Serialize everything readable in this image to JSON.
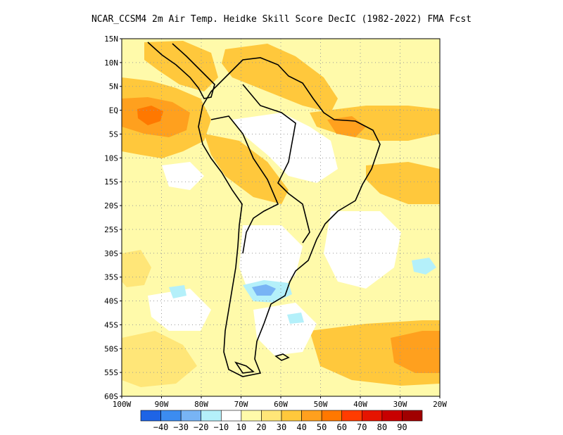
{
  "title": "NCAR_CCSM4  2m Air Temp. Heidke Skill Score DecIC (1982-2022) FMA Fcst",
  "map": {
    "region": "South America",
    "lon_range": [
      -100,
      -20
    ],
    "lat_range": [
      -60,
      15
    ],
    "grid": true,
    "lat_labels": [
      "15N",
      "10N",
      "5N",
      "EQ",
      "5S",
      "10S",
      "15S",
      "20S",
      "25S",
      "30S",
      "35S",
      "40S",
      "45S",
      "50S",
      "55S",
      "60S"
    ],
    "lon_labels": [
      "100W",
      "90W",
      "80W",
      "70W",
      "60W",
      "50W",
      "40W",
      "30W",
      "20W"
    ],
    "background_color": "#ffffff",
    "land_outline_color": "#000000"
  },
  "colorbar": {
    "colors": [
      "#1e64e6",
      "#3c8cf0",
      "#78b4f5",
      "#b4f0fa",
      "#ffffff",
      "#fffaaa",
      "#ffe678",
      "#ffc83c",
      "#ffa01e",
      "#ff7800",
      "#ff3c00",
      "#e61400",
      "#c80000",
      "#a00000"
    ],
    "labels": [
      "-40",
      "-30",
      "-20",
      "-10",
      "10",
      "20",
      "30",
      "40",
      "50",
      "60",
      "70",
      "80",
      "90"
    ]
  }
}
